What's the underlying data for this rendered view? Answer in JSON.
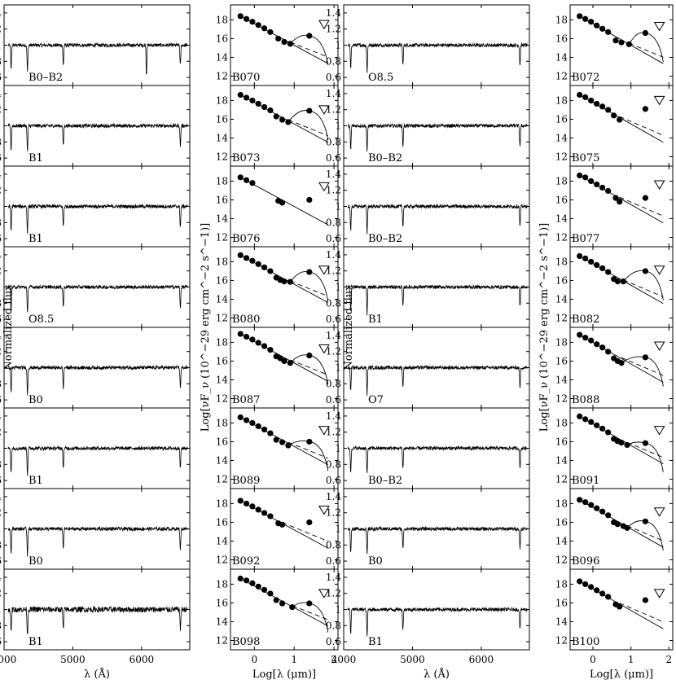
{
  "chart_data": {
    "type": "line",
    "spectra_axis": {
      "xlabel": "λ (Å)",
      "ylabel": "Normalized flux",
      "xlim": [
        4000,
        6700
      ],
      "ylim": [
        0.5,
        1.5
      ],
      "xticks": [
        "4000",
        "5000",
        "6000"
      ],
      "yticks": [
        "0.6",
        "0.8",
        "1",
        "1.2",
        "1.4"
      ]
    },
    "sed_axis": {
      "xlabel": "Log[λ (μm)]",
      "ylabel": "Log[νF_ν (10^−29 erg cm^−2 s^−1)]",
      "xlim": [
        -0.6,
        2.1
      ],
      "ylim": [
        11,
        19.6
      ],
      "xticks": [
        "0",
        "1",
        "2"
      ],
      "yticks": [
        "12",
        "14",
        "16",
        "18"
      ]
    },
    "spectral_types": [
      [
        "B0–B2",
        "O8.5"
      ],
      [
        "B1",
        "B0–B2"
      ],
      [
        "B1",
        "B0–B2"
      ],
      [
        "O8.5",
        "B1"
      ],
      [
        "B0",
        "O7"
      ],
      [
        "B1",
        "B0–B2"
      ],
      [
        "B0",
        "B0"
      ],
      [
        "B1",
        "B1"
      ]
    ],
    "balmer_lines_angstrom": [
      4102,
      4340,
      4861,
      6563
    ],
    "sed_panels": [
      [
        {
          "id": "B070",
          "points": [
            [
              -0.35,
              18.4
            ],
            [
              -0.2,
              18.1
            ],
            [
              -0.05,
              17.8
            ],
            [
              0.1,
              17.45
            ],
            [
              0.25,
              17.1
            ],
            [
              0.4,
              16.7
            ],
            [
              0.6,
              16.0
            ],
            [
              0.75,
              15.65
            ],
            [
              0.9,
              15.45
            ],
            [
              1.38,
              16.3
            ]
          ],
          "upper_limit": [
            1.75,
            17.5
          ],
          "dust_bump": true,
          "dashed": [
            0.9,
            1.45,
            15.4,
            14.1
          ]
        },
        {
          "id": "B072",
          "points": [
            [
              -0.35,
              18.4
            ],
            [
              -0.2,
              18.1
            ],
            [
              -0.05,
              17.8
            ],
            [
              0.1,
              17.4
            ],
            [
              0.25,
              17.05
            ],
            [
              0.4,
              16.7
            ],
            [
              0.6,
              15.8
            ],
            [
              0.75,
              15.6
            ],
            [
              0.95,
              15.4
            ],
            [
              1.38,
              16.6
            ]
          ],
          "upper_limit": [
            1.75,
            17.3
          ],
          "dust_bump": true,
          "dashed": [
            0.95,
            1.45,
            15.3,
            14.0
          ]
        }
      ],
      [
        {
          "id": "B073",
          "points": [
            [
              -0.35,
              18.6
            ],
            [
              -0.2,
              18.3
            ],
            [
              -0.05,
              18.0
            ],
            [
              0.1,
              17.65
            ],
            [
              0.25,
              17.3
            ],
            [
              0.4,
              16.95
            ],
            [
              0.55,
              16.3
            ],
            [
              0.7,
              15.95
            ],
            [
              0.85,
              15.7
            ],
            [
              1.38,
              16.9
            ]
          ],
          "upper_limit": [
            1.75,
            17.0
          ],
          "dust_bump": true,
          "dashed": [
            0.85,
            1.45,
            15.5,
            14.4
          ]
        },
        {
          "id": "B075",
          "points": [
            [
              -0.35,
              18.6
            ],
            [
              -0.2,
              18.35
            ],
            [
              -0.05,
              18.0
            ],
            [
              0.1,
              17.65
            ],
            [
              0.25,
              17.35
            ],
            [
              0.4,
              17.0
            ],
            [
              0.55,
              16.4
            ],
            [
              0.7,
              15.95
            ],
            [
              1.38,
              17.1
            ]
          ],
          "upper_limit": [
            1.75,
            18.0
          ],
          "dust_bump": false,
          "dashed": [
            0.7,
            1.45,
            15.8,
            14.4
          ]
        }
      ],
      [
        {
          "id": "B076",
          "points": [
            [
              -0.35,
              18.4
            ],
            [
              -0.2,
              18.1
            ],
            [
              -0.05,
              17.8
            ],
            [
              0.6,
              15.9
            ],
            [
              0.7,
              15.7
            ],
            [
              1.38,
              16.0
            ]
          ],
          "upper_limit": [
            1.75,
            17.4
          ],
          "dust_bump": false,
          "dashed": null
        },
        {
          "id": "B077",
          "points": [
            [
              -0.35,
              18.6
            ],
            [
              -0.2,
              18.4
            ],
            [
              -0.05,
              18.0
            ],
            [
              0.1,
              17.65
            ],
            [
              0.25,
              17.3
            ],
            [
              0.4,
              16.95
            ],
            [
              0.6,
              16.2
            ],
            [
              0.7,
              15.8
            ],
            [
              1.38,
              16.2
            ]
          ],
          "upper_limit": [
            1.75,
            17.6
          ],
          "dust_bump": false,
          "dashed": [
            0.7,
            1.45,
            15.4,
            14.4
          ]
        }
      ],
      [
        {
          "id": "B080",
          "points": [
            [
              -0.35,
              18.7
            ],
            [
              -0.2,
              18.4
            ],
            [
              -0.05,
              18.1
            ],
            [
              0.1,
              17.75
            ],
            [
              0.25,
              17.4
            ],
            [
              0.4,
              17.0
            ],
            [
              0.55,
              16.3
            ],
            [
              0.65,
              16.05
            ],
            [
              0.75,
              15.9
            ],
            [
              0.9,
              15.85
            ],
            [
              1.38,
              16.9
            ]
          ],
          "upper_limit": [
            1.75,
            17.1
          ],
          "dust_bump": true,
          "dashed": [
            0.9,
            1.45,
            15.4,
            14.3
          ]
        },
        {
          "id": "B082",
          "points": [
            [
              -0.35,
              18.6
            ],
            [
              -0.2,
              18.35
            ],
            [
              -0.05,
              18.0
            ],
            [
              0.1,
              17.65
            ],
            [
              0.25,
              17.3
            ],
            [
              0.4,
              16.9
            ],
            [
              0.55,
              16.15
            ],
            [
              0.65,
              15.9
            ],
            [
              0.8,
              15.9
            ],
            [
              1.38,
              17.0
            ]
          ],
          "upper_limit": [
            1.75,
            17.1
          ],
          "dust_bump": true,
          "dashed": [
            0.8,
            1.45,
            15.8,
            14.5
          ]
        }
      ],
      [
        {
          "id": "B087",
          "points": [
            [
              -0.35,
              18.9
            ],
            [
              -0.2,
              18.6
            ],
            [
              -0.05,
              18.3
            ],
            [
              0.1,
              17.95
            ],
            [
              0.25,
              17.6
            ],
            [
              0.4,
              17.2
            ],
            [
              0.55,
              16.5
            ],
            [
              0.65,
              16.3
            ],
            [
              0.75,
              16.0
            ],
            [
              0.9,
              15.8
            ],
            [
              1.38,
              16.6
            ]
          ],
          "upper_limit": [
            1.75,
            17.3
          ],
          "dust_bump": true,
          "dashed": [
            0.9,
            1.45,
            15.4,
            14.2
          ]
        },
        {
          "id": "B088",
          "points": [
            [
              -0.35,
              18.8
            ],
            [
              -0.2,
              18.5
            ],
            [
              -0.05,
              18.2
            ],
            [
              0.1,
              17.8
            ],
            [
              0.25,
              17.45
            ],
            [
              0.4,
              17.0
            ],
            [
              0.55,
              16.3
            ],
            [
              0.65,
              16.0
            ],
            [
              0.75,
              15.8
            ],
            [
              1.38,
              16.4
            ]
          ],
          "upper_limit": [
            1.75,
            17.6
          ],
          "dust_bump": true,
          "dashed": [
            0.75,
            1.45,
            15.5,
            14.3
          ]
        }
      ],
      [
        {
          "id": "B089",
          "points": [
            [
              -0.35,
              18.6
            ],
            [
              -0.2,
              18.3
            ],
            [
              -0.05,
              18.0
            ],
            [
              0.1,
              17.65
            ],
            [
              0.25,
              17.3
            ],
            [
              0.4,
              16.9
            ],
            [
              0.55,
              16.2
            ],
            [
              0.7,
              15.95
            ],
            [
              0.85,
              15.6
            ],
            [
              1.38,
              16.0
            ]
          ],
          "upper_limit": [
            1.75,
            17.2
          ],
          "dust_bump": true,
          "dashed": [
            0.85,
            1.45,
            15.3,
            14.2
          ]
        },
        {
          "id": "B091",
          "points": [
            [
              -0.35,
              18.7
            ],
            [
              -0.2,
              18.4
            ],
            [
              -0.05,
              18.1
            ],
            [
              0.1,
              17.75
            ],
            [
              0.25,
              17.4
            ],
            [
              0.4,
              17.0
            ],
            [
              0.55,
              16.3
            ],
            [
              0.65,
              16.05
            ],
            [
              0.75,
              15.9
            ],
            [
              0.9,
              15.65
            ],
            [
              1.38,
              15.85
            ]
          ],
          "upper_limit": [
            1.75,
            17.2
          ],
          "dust_bump": true,
          "dashed": [
            0.9,
            1.45,
            15.4,
            14.3
          ]
        }
      ],
      [
        {
          "id": "B092",
          "points": [
            [
              -0.35,
              18.3
            ],
            [
              -0.2,
              18.0
            ],
            [
              -0.05,
              17.7
            ],
            [
              0.1,
              17.35
            ],
            [
              0.25,
              17.0
            ],
            [
              0.4,
              16.65
            ],
            [
              0.6,
              15.9
            ],
            [
              0.7,
              15.75
            ],
            [
              1.38,
              16.0
            ]
          ],
          "upper_limit": [
            1.75,
            17.3
          ],
          "dust_bump": false,
          "dashed": [
            0.7,
            1.45,
            15.6,
            14.4
          ]
        },
        {
          "id": "B096",
          "points": [
            [
              -0.35,
              18.4
            ],
            [
              -0.2,
              18.15
            ],
            [
              -0.05,
              17.85
            ],
            [
              0.1,
              17.5
            ],
            [
              0.25,
              17.15
            ],
            [
              0.4,
              16.75
            ],
            [
              0.55,
              16.0
            ],
            [
              0.65,
              15.8
            ],
            [
              0.8,
              15.6
            ],
            [
              0.9,
              15.4
            ],
            [
              1.38,
              16.1
            ]
          ],
          "upper_limit": [
            1.75,
            17.1
          ],
          "dust_bump": true,
          "dashed": [
            0.9,
            1.45,
            15.3,
            14.2
          ]
        }
      ],
      [
        {
          "id": "B098",
          "points": [
            [
              -0.35,
              18.6
            ],
            [
              -0.2,
              18.4
            ],
            [
              -0.05,
              18.1
            ],
            [
              0.1,
              17.75
            ],
            [
              0.25,
              17.4
            ],
            [
              0.4,
              17.0
            ],
            [
              0.55,
              16.3
            ],
            [
              0.7,
              15.95
            ],
            [
              0.95,
              15.55
            ],
            [
              1.38,
              15.95
            ]
          ],
          "upper_limit": [
            1.75,
            17.0
          ],
          "dust_bump": true,
          "dashed": [
            0.95,
            1.45,
            15.3,
            14.2
          ]
        },
        {
          "id": "B100",
          "points": [
            [
              -0.35,
              18.3
            ],
            [
              -0.2,
              18.0
            ],
            [
              -0.05,
              17.7
            ],
            [
              0.1,
              17.35
            ],
            [
              0.25,
              17.0
            ],
            [
              0.4,
              16.65
            ],
            [
              0.6,
              15.85
            ],
            [
              0.7,
              15.6
            ],
            [
              1.38,
              16.3
            ]
          ],
          "upper_limit": [
            1.75,
            17.0
          ],
          "dust_bump": false,
          "dashed": [
            0.7,
            1.45,
            15.6,
            14.4
          ]
        }
      ]
    ]
  }
}
